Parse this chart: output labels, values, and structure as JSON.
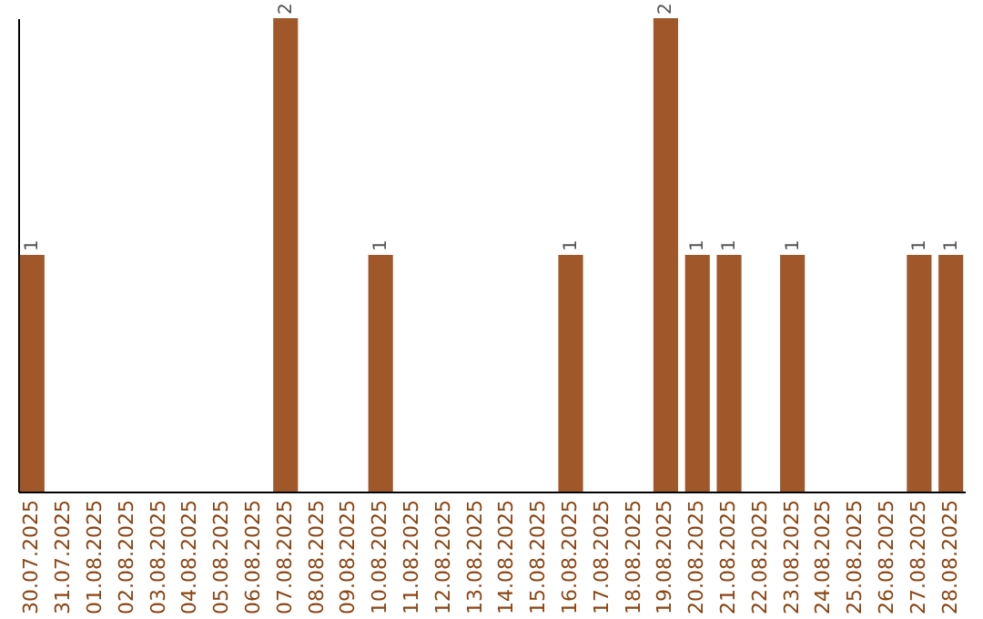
{
  "chart_data": {
    "type": "bar",
    "categories": [
      "30.07.2025",
      "31.07.2025",
      "01.08.2025",
      "02.08.2025",
      "03.08.2025",
      "04.08.2025",
      "05.08.2025",
      "06.08.2025",
      "07.08.2025",
      "08.08.2025",
      "09.08.2025",
      "10.08.2025",
      "11.08.2025",
      "12.08.2025",
      "13.08.2025",
      "14.08.2025",
      "15.08.2025",
      "16.08.2025",
      "17.08.2025",
      "18.08.2025",
      "19.08.2025",
      "20.08.2025",
      "21.08.2025",
      "22.08.2025",
      "23.08.2025",
      "24.08.2025",
      "25.08.2025",
      "26.08.2025",
      "27.08.2025",
      "28.08.2025"
    ],
    "values": [
      1,
      0,
      0,
      0,
      0,
      0,
      0,
      0,
      2,
      0,
      0,
      1,
      0,
      0,
      0,
      0,
      0,
      1,
      0,
      0,
      2,
      1,
      1,
      0,
      1,
      0,
      0,
      0,
      1,
      1
    ],
    "value_labels": [
      "1",
      null,
      null,
      null,
      null,
      null,
      null,
      null,
      "2",
      null,
      null,
      "1",
      null,
      null,
      null,
      null,
      null,
      "1",
      null,
      null,
      "2",
      "1",
      "1",
      null,
      "1",
      null,
      null,
      null,
      "1",
      "1"
    ],
    "color": "#a0582a",
    "tick_labels": "x"
  }
}
